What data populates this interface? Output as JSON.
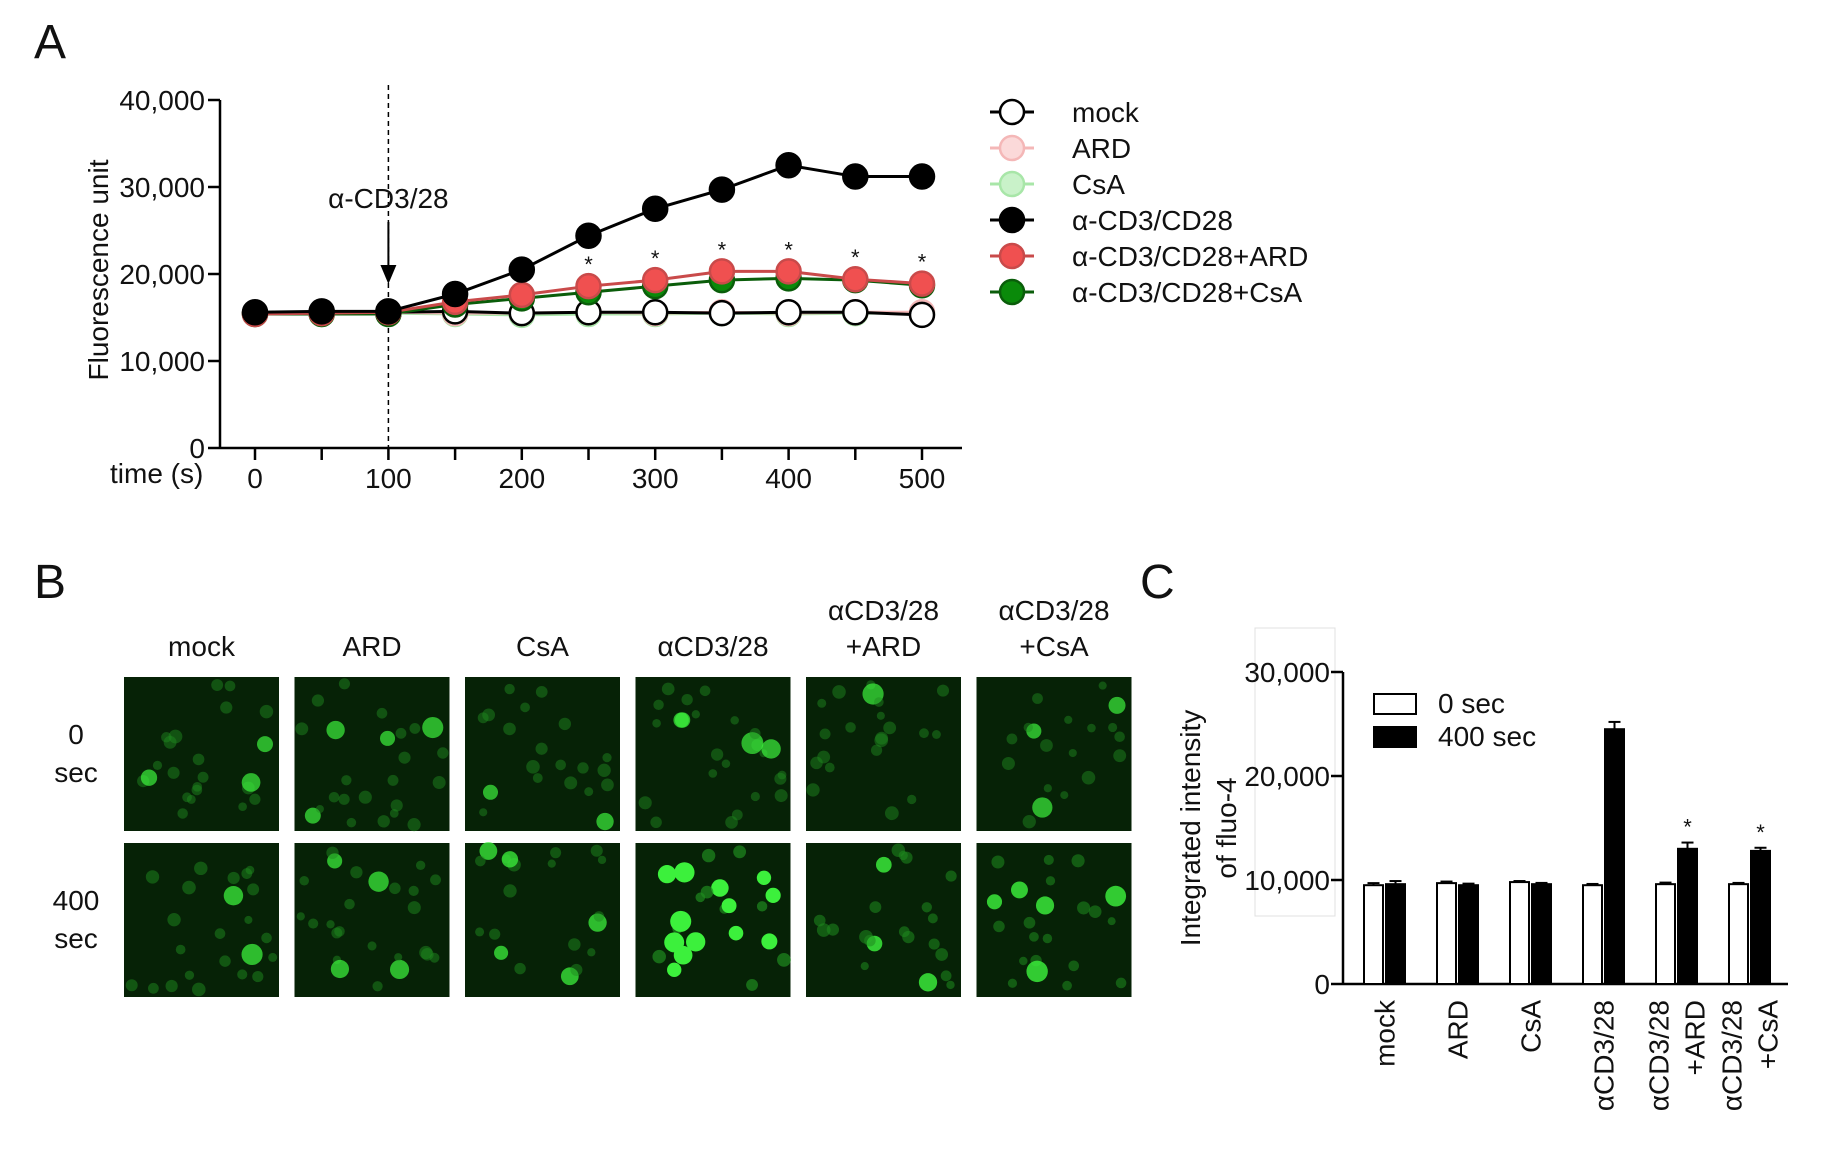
{
  "panels": {
    "a": "A",
    "b": "B",
    "c": "C"
  },
  "chart_data": [
    {
      "panel": "A",
      "type": "line",
      "xlabel": "time (s)",
      "ylabel": "Fluorescence unit",
      "xlim": [
        0,
        500
      ],
      "ylim": [
        0,
        40000
      ],
      "xticks": [
        0,
        100,
        200,
        300,
        400,
        500
      ],
      "xtick_labels": [
        "0",
        "100",
        "200",
        "300",
        "400",
        "500"
      ],
      "yticks": [
        0,
        10000,
        20000,
        30000,
        40000
      ],
      "ytick_labels": [
        "0",
        "10,000",
        "20,000",
        "30,000",
        "40,000"
      ],
      "x": [
        0,
        50,
        100,
        150,
        200,
        250,
        300,
        350,
        400,
        450,
        500
      ],
      "annotation": {
        "label": "α-CD3/28",
        "x": 100
      },
      "significance": {
        "symbol": "*",
        "x": [
          250,
          300,
          350,
          400,
          450,
          500
        ]
      },
      "legend_position": "right",
      "series": [
        {
          "name": "mock",
          "color": "#000000",
          "fill": "#ffffff",
          "values": [
            15500,
            15600,
            15600,
            15700,
            15500,
            15600,
            15600,
            15500,
            15600,
            15600,
            15300
          ]
        },
        {
          "name": "ARD",
          "color": "#f4b7b7",
          "fill": "#fbd9d9",
          "values": [
            15400,
            15500,
            15600,
            15500,
            15500,
            15600,
            15500,
            15600,
            15500,
            15600,
            15600
          ]
        },
        {
          "name": "CsA",
          "color": "#a8e6a8",
          "fill": "#c9f2c9",
          "values": [
            15400,
            15400,
            15500,
            15400,
            15300,
            15400,
            15400,
            15500,
            15400,
            15500,
            15500
          ]
        },
        {
          "name": "α-CD3/CD28",
          "color": "#000000",
          "fill": "#000000",
          "values": [
            15600,
            15700,
            15700,
            17700,
            20500,
            24400,
            27500,
            29700,
            32500,
            31200,
            31200
          ]
        },
        {
          "name": "α-CD3/CD28+ARD",
          "color": "#c94a4a",
          "fill": "#f05050",
          "values": [
            15400,
            15500,
            15600,
            16800,
            17600,
            18600,
            19300,
            20300,
            20300,
            19400,
            18900
          ]
        },
        {
          "name": "α-CD3/CD28+CsA",
          "color": "#0a5d0a",
          "fill": "#0a8a0a",
          "values": [
            15400,
            15400,
            15400,
            16500,
            17200,
            17900,
            18600,
            19300,
            19500,
            19300,
            18700
          ]
        }
      ]
    },
    {
      "panel": "C",
      "type": "bar",
      "ylabel": [
        "Integrated intensity",
        "of fluo-4"
      ],
      "ylim": [
        0,
        30000
      ],
      "yticks": [
        0,
        10000,
        20000,
        30000
      ],
      "ytick_labels": [
        "0",
        "10,000",
        "20,000",
        "30,000"
      ],
      "categories": [
        [
          "mock"
        ],
        [
          "ARD"
        ],
        [
          "CsA"
        ],
        [
          "αCD3/28"
        ],
        [
          "αCD3/28",
          "+ARD"
        ],
        [
          "αCD3/28",
          "+CsA"
        ]
      ],
      "significance": {
        "symbol": "*",
        "category_index": [
          4,
          5
        ],
        "series_index": 1
      },
      "legend_position": "top-left",
      "series": [
        {
          "name": "0 sec",
          "color": "#ffffff",
          "values": [
            9500,
            9700,
            9800,
            9500,
            9600,
            9600
          ],
          "errors": [
            200,
            150,
            100,
            120,
            150,
            120
          ]
        },
        {
          "name": "400 sec",
          "color": "#000000",
          "values": [
            9600,
            9500,
            9600,
            24500,
            13000,
            12800
          ],
          "errors": [
            300,
            150,
            120,
            700,
            600,
            300
          ]
        }
      ]
    }
  ],
  "micrographs": {
    "panel": "B",
    "columns": [
      [
        "mock"
      ],
      [
        "ARD"
      ],
      [
        "CsA"
      ],
      [
        "αCD3/28"
      ],
      [
        "αCD3/28",
        "+ARD"
      ],
      [
        "αCD3/28",
        "+CsA"
      ]
    ],
    "rows": [
      [
        "0",
        "sec"
      ],
      [
        "400",
        "sec"
      ]
    ],
    "colors": {
      "background": "#062206",
      "dim_cell": "#1f8a1f",
      "bright_cell": "#3cf03c"
    },
    "brightness": [
      [
        0.35,
        0.35,
        0.35,
        0.35,
        0.35,
        0.35
      ],
      [
        0.45,
        0.4,
        0.45,
        1.0,
        0.6,
        0.6
      ]
    ]
  }
}
